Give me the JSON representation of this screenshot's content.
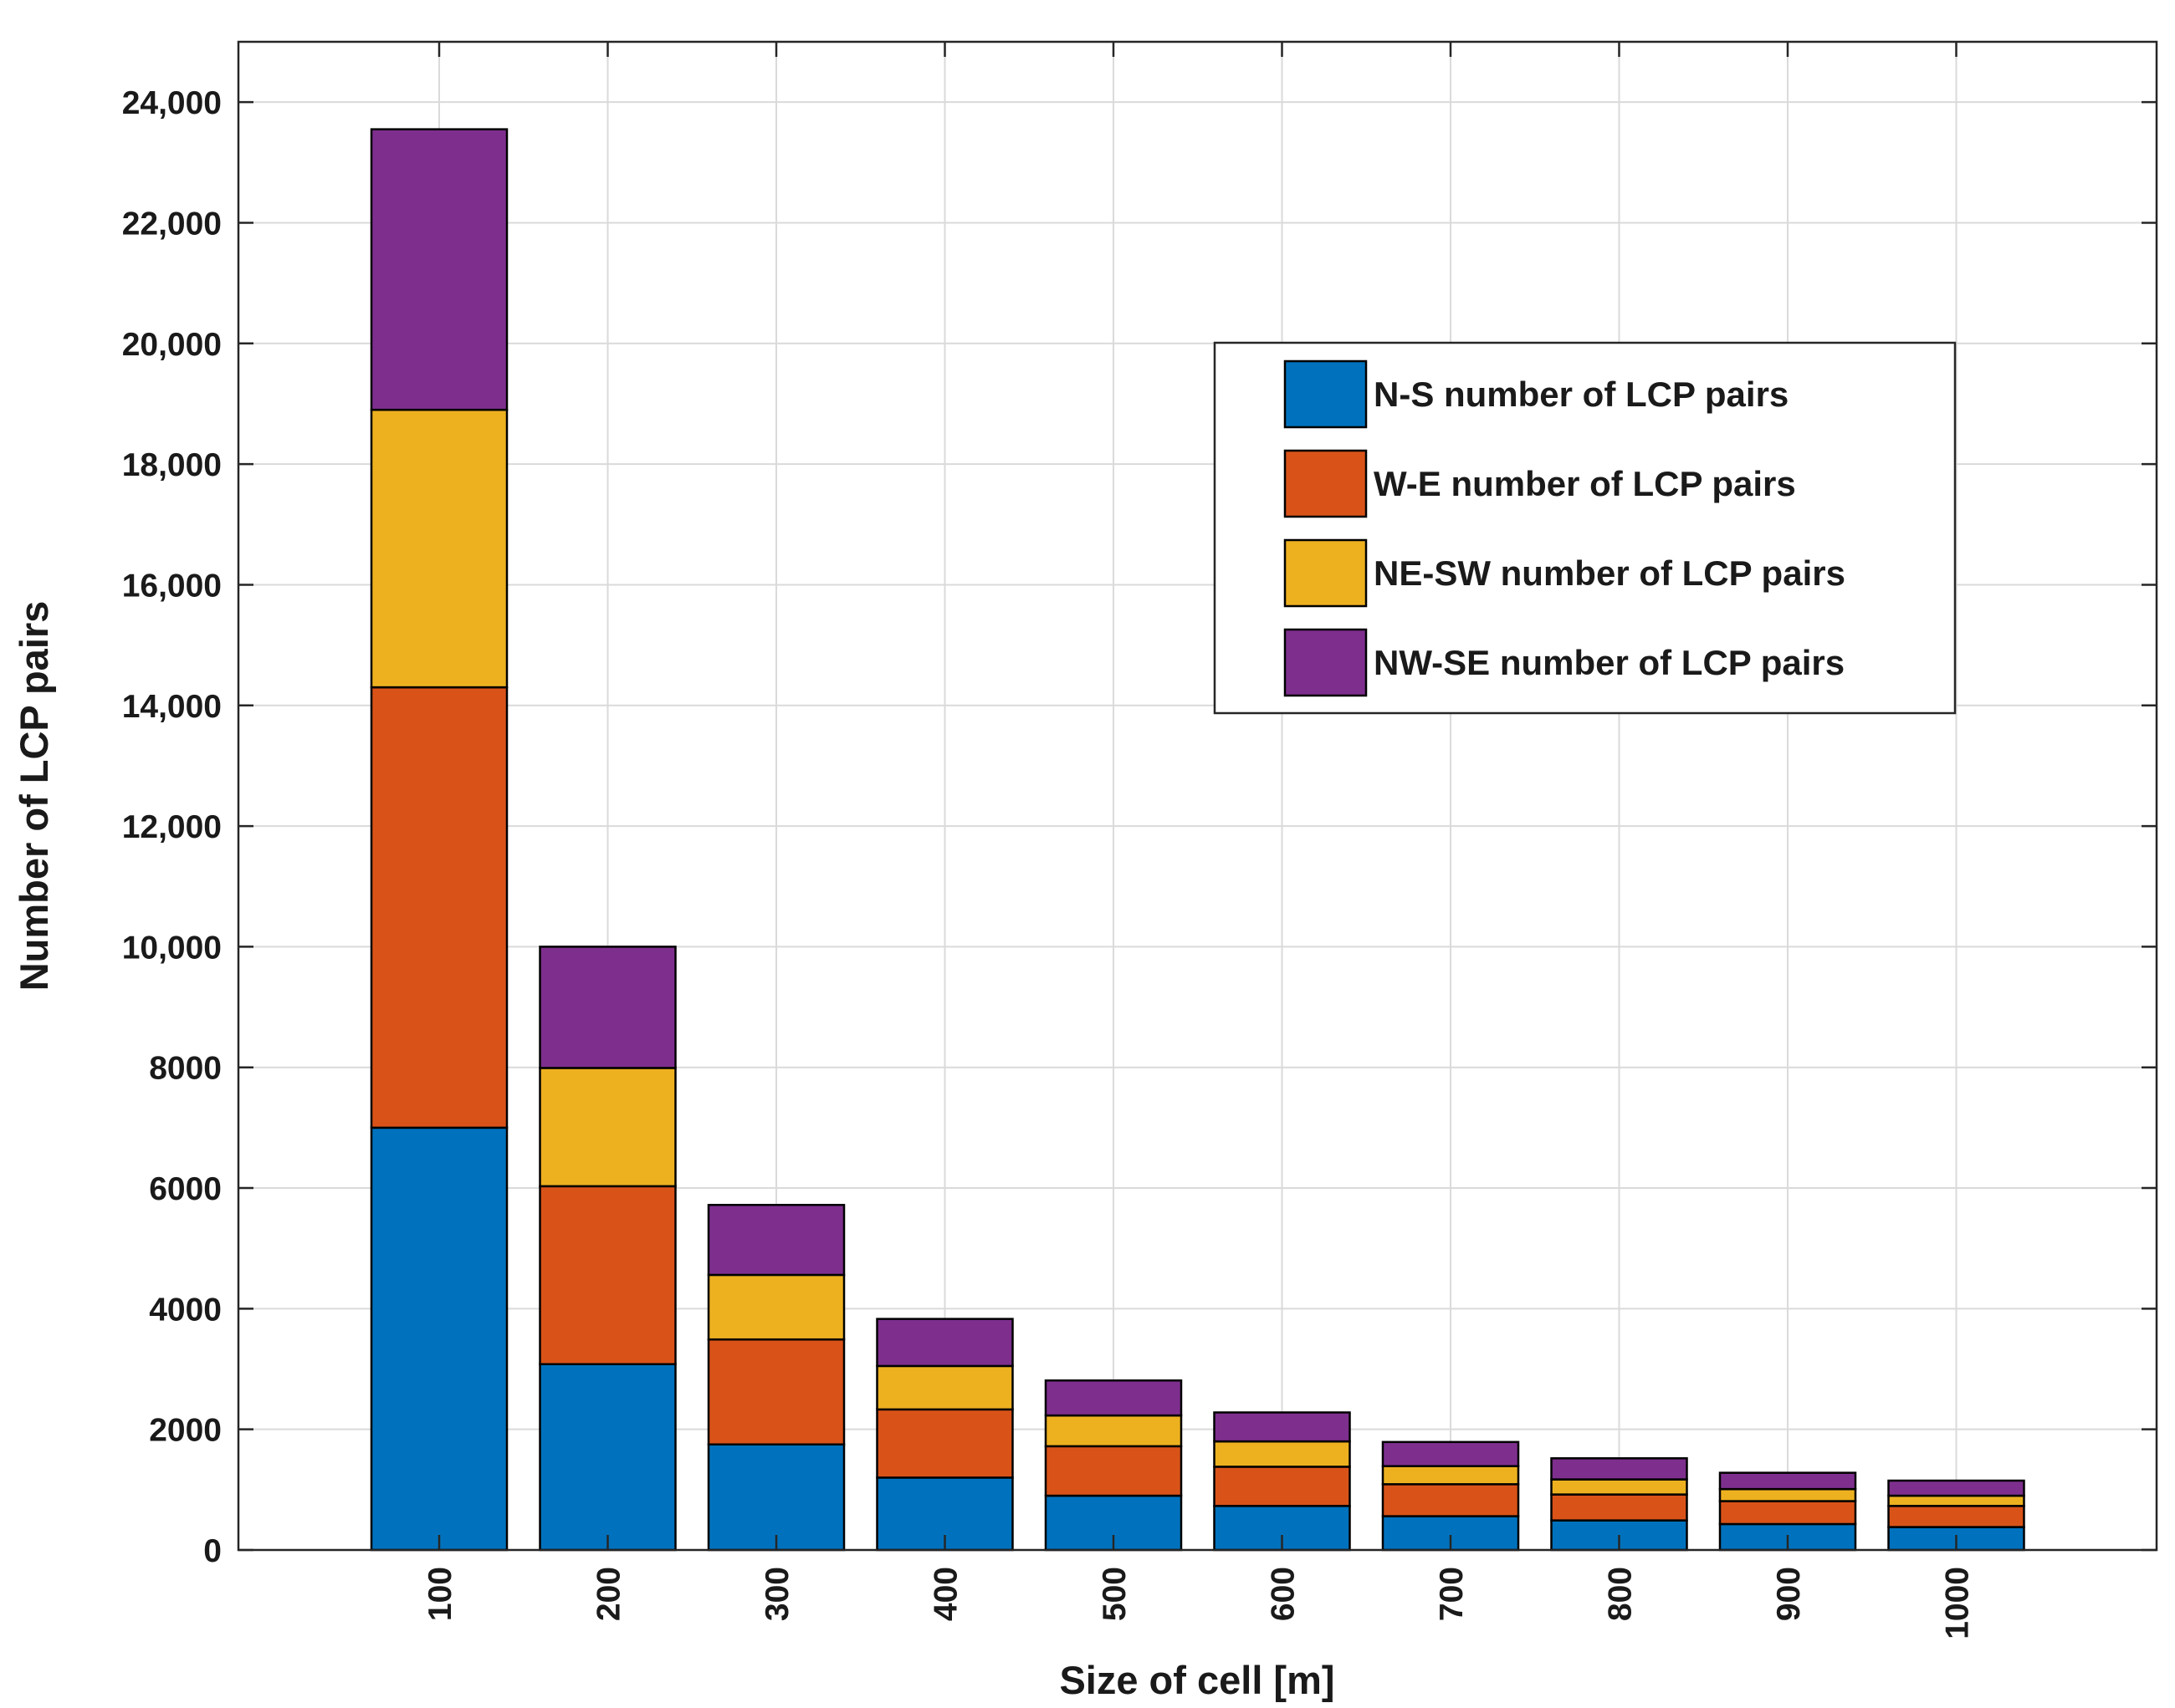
{
  "chart_data": {
    "type": "bar",
    "stacked": true,
    "title": "",
    "xlabel": "Size of cell [m]",
    "ylabel": "Number of LCP pairs",
    "categories": [
      "100",
      "200",
      "300",
      "400",
      "500",
      "600",
      "700",
      "800",
      "900",
      "1000"
    ],
    "ylim": [
      0,
      25000
    ],
    "yticks": [
      0,
      2000,
      4000,
      6000,
      8000,
      10000,
      12000,
      14000,
      16000,
      18000,
      20000,
      22000,
      24000
    ],
    "ytick_labels": [
      "0",
      "2000",
      "4000",
      "6000",
      "8000",
      "10,000",
      "12,000",
      "14,000",
      "16,000",
      "18,000",
      "20,000",
      "22,000",
      "24,000"
    ],
    "grid": true,
    "legend_position": "top-right",
    "series": [
      {
        "name": "N-S number of LCP pairs",
        "color": "#0072BD",
        "values": [
          7000,
          3080,
          1750,
          1200,
          900,
          730,
          560,
          490,
          430,
          380
        ]
      },
      {
        "name": "W-E number of LCP pairs",
        "color": "#D95319",
        "values": [
          7300,
          2950,
          1740,
          1130,
          820,
          650,
          530,
          430,
          380,
          350
        ]
      },
      {
        "name": "NE-SW number of LCP pairs",
        "color": "#EDB120",
        "values": [
          4600,
          1960,
          1070,
          720,
          510,
          420,
          300,
          250,
          200,
          170
        ]
      },
      {
        "name": "NW-SE number of LCP pairs",
        "color": "#7E2F8E",
        "values": [
          4650,
          2010,
          1160,
          780,
          580,
          480,
          400,
          350,
          270,
          250
        ]
      }
    ]
  }
}
